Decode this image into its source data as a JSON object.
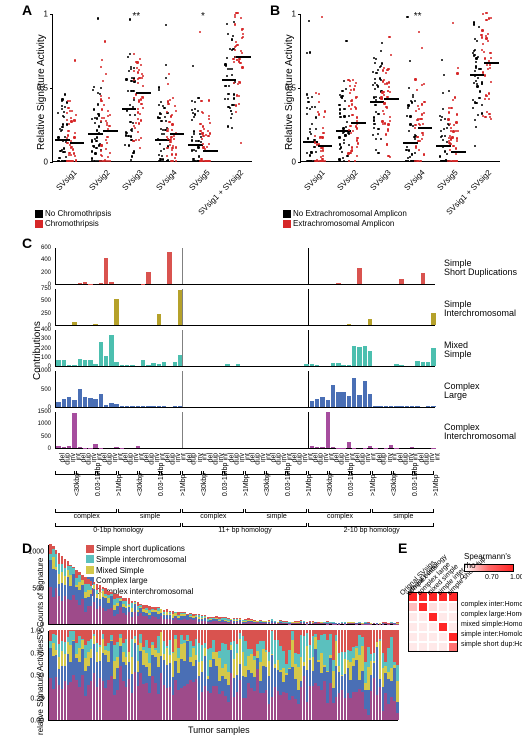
{
  "panelLabels": {
    "A": "A",
    "B": "B",
    "C": "C",
    "D": "D",
    "E": "E"
  },
  "colors": {
    "black": "#000000",
    "red": "#d62728",
    "sig1": "#d9534f",
    "sig2": "#b5a12a",
    "sig3": "#4cbfaf",
    "sig4": "#4a7bd0",
    "sig5": "#a64d9e",
    "simple_short_dup": "#d9534f",
    "simple_inter": "#5bc0be",
    "mixed_simple": "#d4c84a",
    "complex_large": "#4a6fb5",
    "complex_inter": "#9e4b8a",
    "hm_low": "#ffffff",
    "hm_high": "#d62728"
  },
  "scatter": {
    "yLabel": "Relative Signature Activity",
    "yTicks": [
      0,
      0.5,
      1
    ],
    "categories": [
      "SVsig1",
      "SVsig2",
      "SVsig3",
      "SVsig4",
      "SVsig5",
      "SVsig1 + SVsig2"
    ],
    "sigMarks": {
      "A": [
        "",
        "",
        "**",
        "",
        "*",
        ""
      ],
      "B": [
        "",
        "",
        "",
        "**",
        "",
        ""
      ]
    },
    "legendA": [
      "No Chromothripsis",
      "Chromothripsis"
    ],
    "legendB": [
      "No Extrachromosomal Amplicon",
      "Extrachromosomal Amplicon"
    ],
    "medians": {
      "A": {
        "black": [
          0.14,
          0.18,
          0.35,
          0.14,
          0.11,
          0.55
        ],
        "red": [
          0.12,
          0.2,
          0.46,
          0.18,
          0.07,
          0.7
        ]
      },
      "B": {
        "black": [
          0.13,
          0.2,
          0.4,
          0.12,
          0.1,
          0.58
        ],
        "red": [
          0.1,
          0.26,
          0.42,
          0.22,
          0.06,
          0.66
        ]
      }
    }
  },
  "panelC": {
    "yLabel": "Contributions",
    "rows": [
      {
        "name": "Simple\nShort Duplications",
        "max": 600,
        "ticks": [
          0,
          200,
          400,
          600
        ]
      },
      {
        "name": "Simple\nInterchromosomal",
        "max": 750,
        "ticks": [
          0,
          250,
          500,
          750
        ]
      },
      {
        "name": "Mixed\nSimple",
        "max": 400,
        "ticks": [
          0,
          100,
          200,
          300,
          400
        ]
      },
      {
        "name": "Complex\nLarge",
        "max": 1000,
        "ticks": [
          0,
          500,
          1000
        ]
      },
      {
        "name": "Complex\nInterchromosomal",
        "max": 1500,
        "ticks": [
          0,
          500,
          1000,
          1500
        ]
      }
    ],
    "xTickLabels": [
      "del",
      "dup",
      "inv",
      "int",
      "del",
      "dup",
      "inv",
      "int",
      "del",
      "dup",
      "inv",
      "int"
    ],
    "sizeBrackets": [
      "<30kbp",
      "0.03-1Mbp",
      ">1Mbp"
    ],
    "complexSimple": [
      "complex",
      "simple"
    ],
    "homology": [
      "0-1bp homology",
      "11+ bp homology",
      "2-10 bp homology"
    ],
    "barColors": [
      "#d9534f",
      "#b5a12a",
      "#4cbfaf",
      "#4a6fb5",
      "#a64d9e"
    ],
    "data": [
      [
        0,
        0,
        0,
        0,
        10,
        30,
        5,
        0,
        20,
        420,
        30,
        0,
        0,
        0,
        0,
        0,
        5,
        200,
        0,
        0,
        0,
        520,
        0,
        0,
        0,
        0,
        0,
        0,
        0,
        0,
        0,
        0,
        0,
        0,
        0,
        0,
        0,
        0,
        0,
        0,
        0,
        0,
        0,
        0,
        0,
        0,
        0,
        0,
        0,
        0,
        0,
        0,
        0,
        20,
        0,
        0,
        0,
        260,
        0,
        0,
        0,
        0,
        0,
        0,
        0,
        80,
        0,
        0,
        0,
        180,
        0,
        0
      ],
      [
        0,
        0,
        0,
        60,
        0,
        0,
        0,
        30,
        0,
        0,
        0,
        520,
        0,
        0,
        0,
        0,
        0,
        0,
        0,
        220,
        0,
        0,
        0,
        700,
        0,
        0,
        0,
        0,
        0,
        0,
        0,
        0,
        0,
        0,
        0,
        0,
        0,
        0,
        0,
        0,
        0,
        0,
        0,
        0,
        0,
        0,
        0,
        0,
        0,
        0,
        0,
        0,
        0,
        0,
        0,
        30,
        0,
        0,
        0,
        120,
        0,
        0,
        0,
        0,
        0,
        0,
        0,
        0,
        0,
        0,
        0,
        240
      ],
      [
        60,
        60,
        10,
        10,
        80,
        60,
        60,
        20,
        260,
        110,
        340,
        40,
        10,
        10,
        10,
        0,
        60,
        10,
        30,
        20,
        40,
        0,
        40,
        120,
        0,
        0,
        0,
        0,
        0,
        0,
        0,
        0,
        20,
        0,
        20,
        0,
        0,
        0,
        0,
        0,
        0,
        0,
        0,
        0,
        0,
        0,
        0,
        20,
        20,
        10,
        0,
        0,
        30,
        30,
        10,
        10,
        220,
        210,
        220,
        160,
        0,
        0,
        0,
        0,
        20,
        10,
        0,
        0,
        50,
        40,
        40,
        200
      ],
      [
        140,
        220,
        260,
        200,
        480,
        280,
        250,
        220,
        360,
        60,
        120,
        80,
        20,
        20,
        40,
        20,
        40,
        30,
        30,
        20,
        30,
        0,
        30,
        20,
        0,
        0,
        0,
        0,
        0,
        0,
        0,
        0,
        0,
        0,
        0,
        0,
        0,
        0,
        0,
        0,
        0,
        0,
        0,
        0,
        0,
        0,
        0,
        0,
        160,
        210,
        280,
        180,
        600,
        410,
        400,
        310,
        780,
        320,
        700,
        360,
        20,
        20,
        30,
        20,
        40,
        20,
        30,
        20,
        40,
        0,
        40,
        40
      ],
      [
        80,
        30,
        80,
        1400,
        30,
        10,
        20,
        180,
        10,
        0,
        0,
        60,
        20,
        0,
        0,
        100,
        0,
        0,
        0,
        0,
        0,
        0,
        0,
        0,
        0,
        0,
        0,
        0,
        0,
        0,
        0,
        0,
        0,
        0,
        0,
        0,
        0,
        0,
        0,
        0,
        0,
        0,
        0,
        0,
        0,
        0,
        0,
        0,
        90,
        40,
        60,
        1460,
        40,
        10,
        20,
        260,
        20,
        0,
        20,
        80,
        20,
        0,
        10,
        120,
        10,
        0,
        0,
        30,
        0,
        0,
        0,
        10
      ]
    ]
  },
  "panelD": {
    "legend": [
      "Simple short duplications",
      "Simple interchromosomal",
      "Mixed Simple",
      "Complex large",
      "Complex interchromosomal"
    ],
    "legendColors": [
      "#d9534f",
      "#5bc0be",
      "#d4c84a",
      "#4a6fb5",
      "#9e4b8a"
    ],
    "yLabel1": "SV Counts of signature",
    "yLabel2": "relative Signature Activities",
    "xLabel": "Tumor samples",
    "topMax": 1100,
    "topTicks": [
      0,
      500,
      1000
    ],
    "botTicks": [
      0,
      0.25,
      0.5,
      0.75,
      1.0
    ],
    "botTickLabels": [
      "0.00",
      "0.25",
      "0.50",
      "0.75",
      "1.00"
    ],
    "nSamples": 120
  },
  "panelE": {
    "title": "Spearmann's rho",
    "scaleTicks": [
      "0",
      "0.70",
      "1.00"
    ],
    "rowLabels": [
      "complex inter:Homology",
      "complex large:Homology",
      "mixed simple:Homology",
      "simple inter:Homology",
      "simple short dup:Homology"
    ],
    "colLabels": [
      "Orignal SVsigs",
      "without homology",
      "complex inter",
      "complex large",
      "mixed simple",
      "simple inter",
      "simple short dup"
    ],
    "grid": [
      [
        1,
        1,
        1,
        1,
        1
      ],
      [
        0.3,
        1.0,
        0.15,
        0.1,
        0.1
      ],
      [
        0.1,
        0.1,
        1.0,
        0.1,
        0.1
      ],
      [
        0.1,
        0.1,
        0.1,
        1.0,
        0.1
      ],
      [
        0.1,
        0.1,
        0.1,
        0.1,
        1.0
      ],
      [
        0.1,
        0.1,
        0.1,
        0.1,
        0.65
      ]
    ]
  }
}
